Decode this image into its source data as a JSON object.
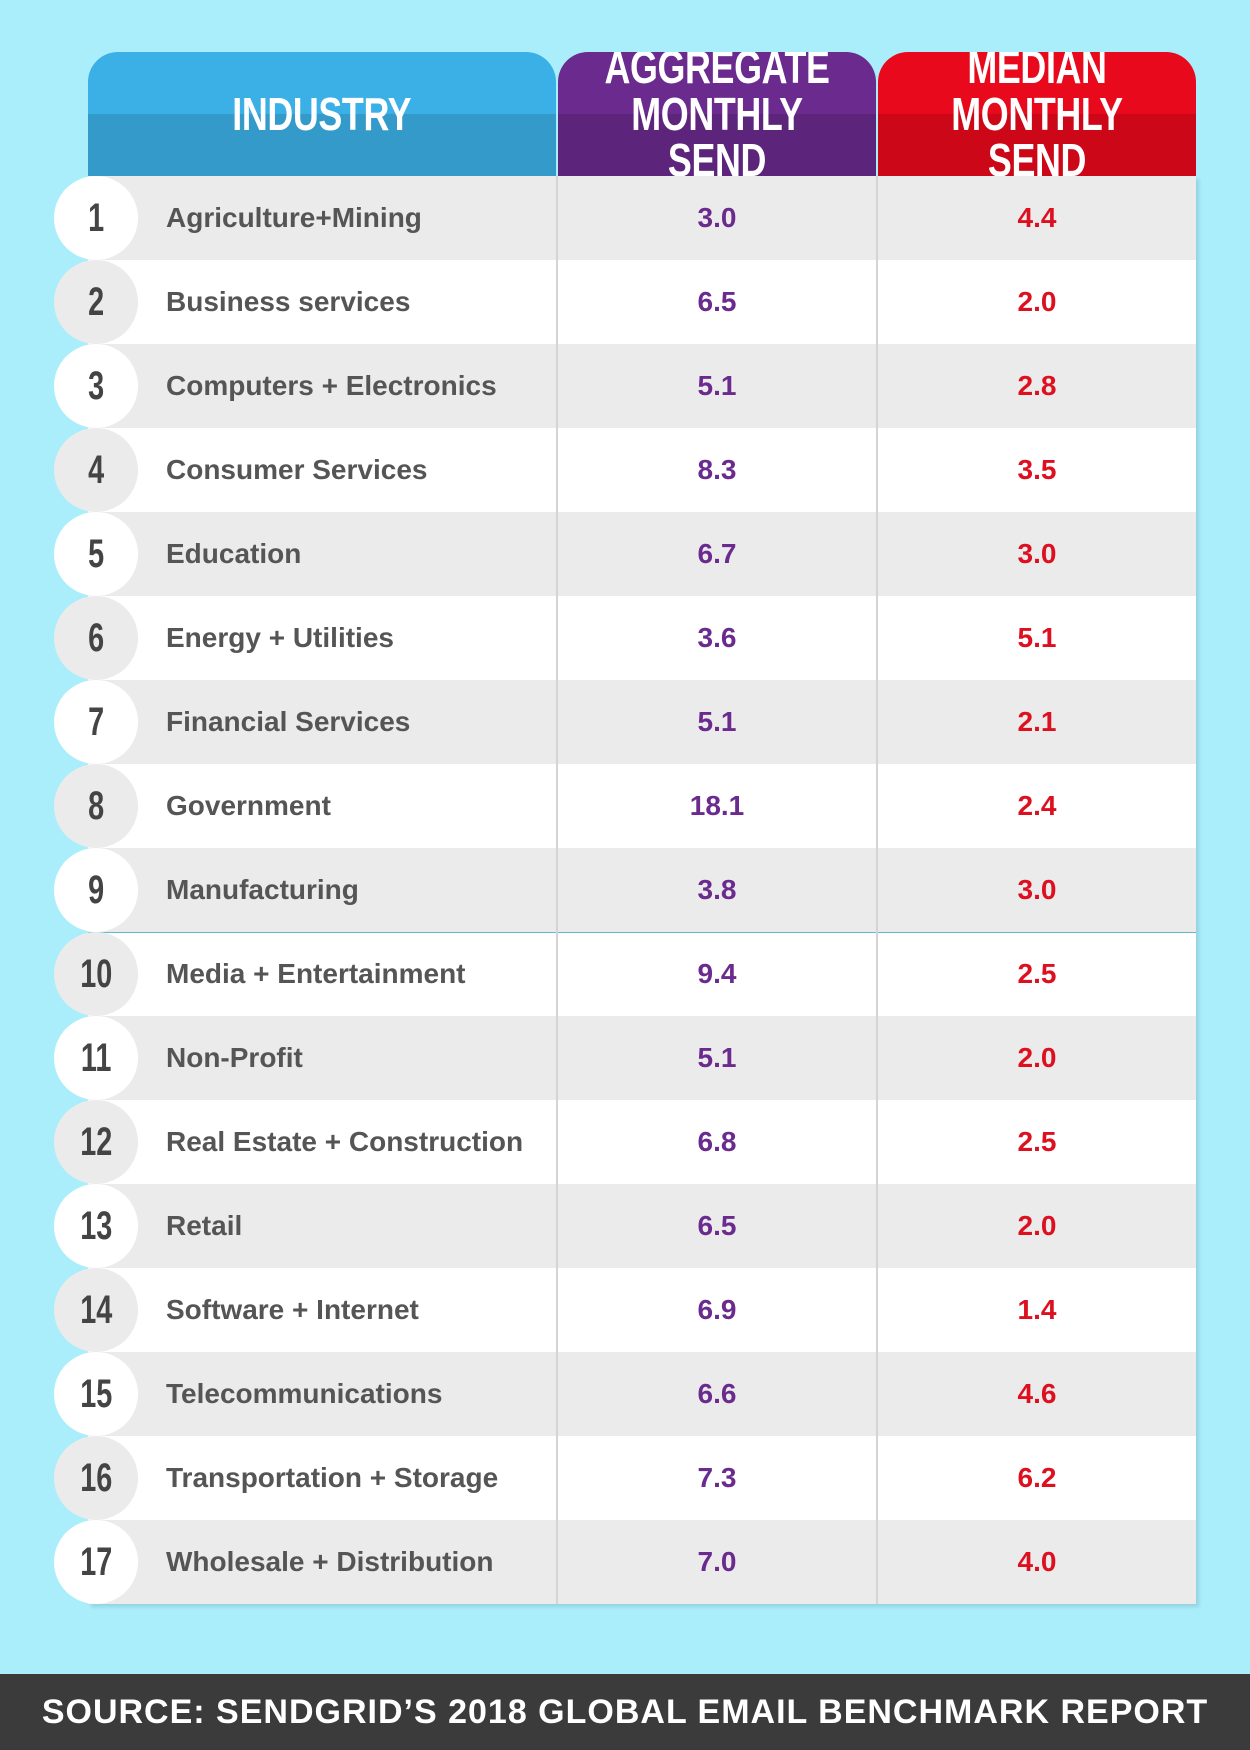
{
  "header": {
    "industry": "INDUSTRY",
    "aggregate_line1": "AGGREGATE",
    "aggregate_line2": "MONTHLY SEND",
    "median_line1": "MEDIAN",
    "median_line2": "MONTHLY SEND"
  },
  "colors": {
    "background": "#aaeefc",
    "industry_header": "#3bb0e6",
    "aggregate_header": "#6a2a8e",
    "median_header": "#e8091c",
    "aggregate_value": "#6a2a8e",
    "median_value": "#dd1020",
    "footer": "#3b3b3b"
  },
  "chart_data": {
    "type": "table",
    "columns": [
      "INDUSTRY",
      "AGGREGATE MONTHLY SEND",
      "MEDIAN MONTHLY SEND"
    ],
    "rows": [
      {
        "rank": "1",
        "industry": "Agriculture+Mining",
        "aggregate": "3.0",
        "median": "4.4"
      },
      {
        "rank": "2",
        "industry": "Business services",
        "aggregate": "6.5",
        "median": "2.0"
      },
      {
        "rank": "3",
        "industry": "Computers + Electronics",
        "aggregate": "5.1",
        "median": "2.8"
      },
      {
        "rank": "4",
        "industry": "Consumer Services",
        "aggregate": "8.3",
        "median": "3.5"
      },
      {
        "rank": "5",
        "industry": "Education",
        "aggregate": "6.7",
        "median": "3.0"
      },
      {
        "rank": "6",
        "industry": "Energy + Utilities",
        "aggregate": "3.6",
        "median": "5.1"
      },
      {
        "rank": "7",
        "industry": "Financial Services",
        "aggregate": "5.1",
        "median": "2.1"
      },
      {
        "rank": "8",
        "industry": "Government",
        "aggregate": "18.1",
        "median": "2.4"
      },
      {
        "rank": "9",
        "industry": "Manufacturing",
        "aggregate": "3.8",
        "median": "3.0"
      },
      {
        "rank": "10",
        "industry": "Media + Entertainment",
        "aggregate": "9.4",
        "median": "2.5"
      },
      {
        "rank": "11",
        "industry": "Non-Profit",
        "aggregate": "5.1",
        "median": "2.0"
      },
      {
        "rank": "12",
        "industry": "Real Estate + Construction",
        "aggregate": "6.8",
        "median": "2.5"
      },
      {
        "rank": "13",
        "industry": "Retail",
        "aggregate": "6.5",
        "median": "2.0"
      },
      {
        "rank": "14",
        "industry": "Software + Internet",
        "aggregate": "6.9",
        "median": "1.4"
      },
      {
        "rank": "15",
        "industry": "Telecommunications",
        "aggregate": "6.6",
        "median": "4.6"
      },
      {
        "rank": "16",
        "industry": "Transportation + Storage",
        "aggregate": "7.3",
        "median": "6.2"
      },
      {
        "rank": "17",
        "industry": "Wholesale + Distribution",
        "aggregate": "7.0",
        "median": "4.0"
      }
    ]
  },
  "footer": {
    "source": "SOURCE: SENDGRID’S 2018 GLOBAL EMAIL BENCHMARK REPORT"
  }
}
